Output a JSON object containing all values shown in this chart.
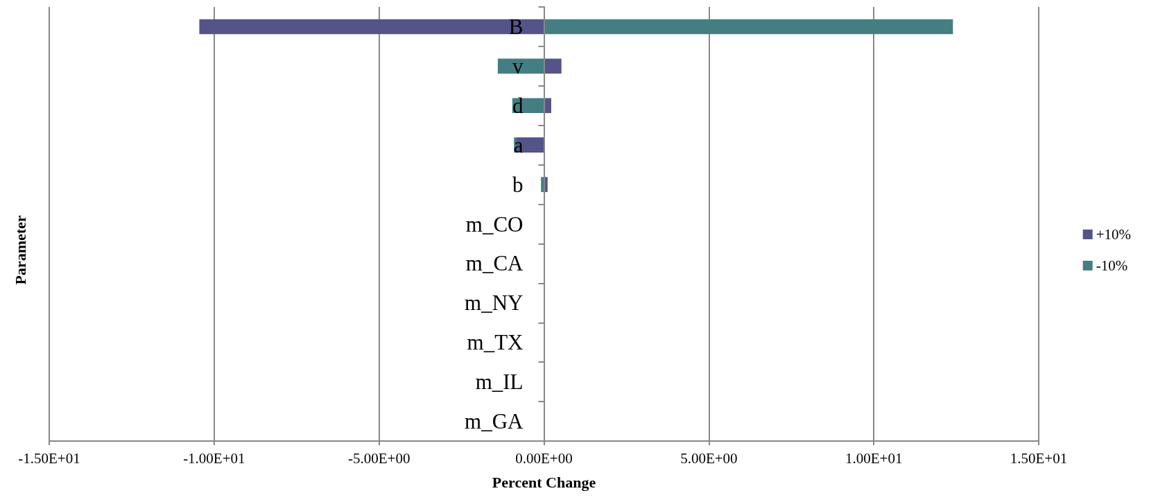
{
  "chart_data": {
    "type": "bar",
    "orientation": "horizontal",
    "xlabel": "Percent Change",
    "ylabel": "Parameter",
    "categories": [
      "B",
      "v",
      "d",
      "a",
      "b",
      "m_CO",
      "m_CA",
      "m_NY",
      "m_TX",
      "m_IL",
      "m_GA"
    ],
    "series": [
      {
        "name": "+10%",
        "color": "#54548a",
        "values": [
          -10.45,
          0.53,
          0.22,
          -0.83,
          0.11,
          0,
          0,
          0,
          0,
          0,
          0
        ]
      },
      {
        "name": "-10%",
        "color": "#437f82",
        "values": [
          12.4,
          -1.4,
          -0.96,
          -0.91,
          -0.09,
          0,
          0,
          0,
          0,
          0,
          0
        ]
      }
    ],
    "xlim": [
      -15,
      15
    ],
    "xticks": [
      {
        "value": -15,
        "label": "-1.50E+01"
      },
      {
        "value": -10,
        "label": "-1.00E+01"
      },
      {
        "value": -5,
        "label": "-5.00E+00"
      },
      {
        "value": 0,
        "label": "0.00E+00"
      },
      {
        "value": 5,
        "label": "5.00E+00"
      },
      {
        "value": 10,
        "label": "1.00E+01"
      },
      {
        "value": 15,
        "label": "1.50E+01"
      }
    ],
    "grid": "x",
    "legend": "right"
  }
}
